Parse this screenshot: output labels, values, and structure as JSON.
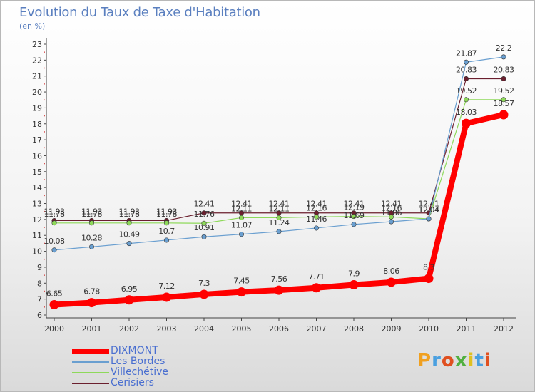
{
  "chart_data": {
    "type": "line",
    "title": "Evolution du Taux de Taxe d'Habitation",
    "subtitle": "(en %)",
    "ylim": [
      6,
      23
    ],
    "yticks": [
      6,
      7,
      8,
      9,
      10,
      11,
      12,
      13,
      14,
      15,
      16,
      17,
      18,
      19,
      20,
      21,
      22,
      23
    ],
    "x": [
      "2000",
      "2001",
      "2002",
      "2003",
      "2004",
      "2005",
      "2006",
      "2007",
      "2008",
      "2009",
      "2010",
      "2011",
      "2012"
    ],
    "grid": false,
    "legend_position": "bottom-left",
    "series": [
      {
        "name": "Cerisiers",
        "color": "#6b1f2e",
        "values": [
          11.93,
          11.93,
          11.93,
          11.93,
          12.41,
          12.41,
          12.41,
          12.41,
          12.41,
          12.41,
          12.41,
          20.83,
          20.83
        ],
        "labels": [
          "11.93",
          "11.93",
          "11.93",
          "11.93",
          "12.41",
          "12.41",
          "12.41",
          "12.41",
          "12.41",
          "12.41",
          "12.41",
          "20.83",
          "20.83"
        ]
      },
      {
        "name": "Villechétive",
        "color": "#8ed95a",
        "values": [
          11.78,
          11.78,
          11.78,
          11.78,
          11.76,
          12.11,
          12.11,
          12.16,
          12.19,
          12.16,
          12.04,
          19.52,
          19.52
        ],
        "labels": [
          "11.78",
          "11.78",
          "11.78",
          "11.78",
          "11.76",
          "12.11",
          "12.11",
          "12.16",
          "12.19",
          "12.16",
          "12.04",
          "19.52",
          "19.52"
        ]
      },
      {
        "name": "Les Bordes",
        "color": "#6a9fd0",
        "values": [
          10.08,
          10.28,
          10.49,
          10.7,
          10.91,
          11.07,
          11.24,
          11.46,
          11.69,
          11.86,
          12.04,
          21.87,
          22.2
        ],
        "labels": [
          "10.08",
          "10.28",
          "10.49",
          "10.7",
          "10.91",
          "11.07",
          "11.24",
          "11.46",
          "11.69",
          "11.86",
          "12.04",
          "21.87",
          "22.2"
        ]
      },
      {
        "name": "DIXMONT",
        "color": "#ff0000",
        "values": [
          6.65,
          6.78,
          6.95,
          7.12,
          7.3,
          7.45,
          7.56,
          7.71,
          7.9,
          8.06,
          8.3,
          18.03,
          18.57
        ],
        "labels": [
          "6.65",
          "6.78",
          "6.95",
          "7.12",
          "7.3",
          "7.45",
          "7.56",
          "7.71",
          "7.9",
          "8.06",
          "8.3",
          "18.03",
          "18.57"
        ]
      }
    ]
  },
  "legend": {
    "items": [
      {
        "label": "DIXMONT",
        "color": "#ff0000"
      },
      {
        "label": "Les Bordes",
        "color": "#6a9fd0"
      },
      {
        "label": "Villechétive",
        "color": "#8ed95a"
      },
      {
        "label": "Cerisiers",
        "color": "#6b1f2e"
      }
    ]
  },
  "logo": {
    "text": "Proxiti",
    "colors": [
      "#f0a020",
      "#4aa0e0",
      "#e05020",
      "#50b040",
      "#e0c020",
      "#4aa0e0",
      "#e05020"
    ]
  }
}
